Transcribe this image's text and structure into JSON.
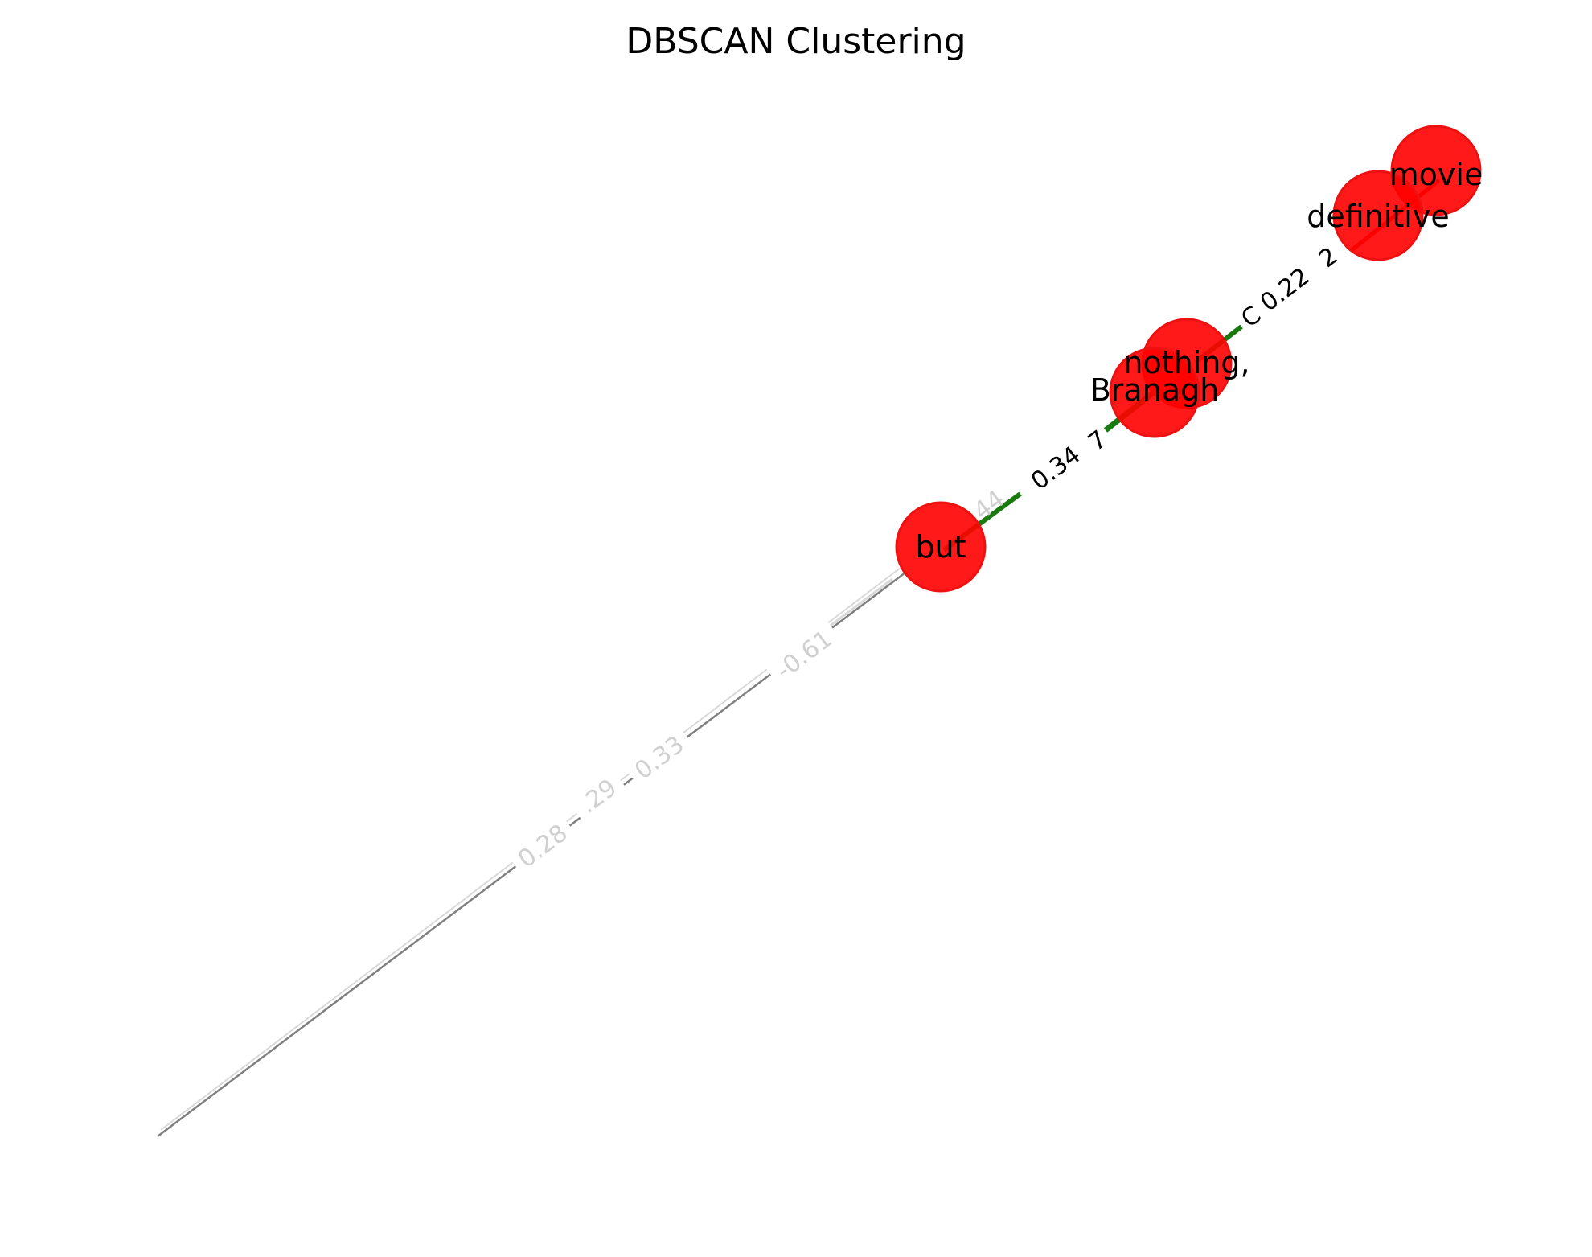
{
  "title": "DBSCAN Clustering",
  "colors": {
    "node_fill": "#ff0000",
    "node_stroke": "#ee1111",
    "edge_green": "#1a7a10",
    "edge_red": "#cc1100",
    "edge_gray": "#7f7f7f",
    "edge_light": "#d9d9d9",
    "label_dark": "#000000",
    "label_light": "#d0d0d0"
  },
  "nodes": [
    {
      "id": "but",
      "label": "but"
    },
    {
      "id": "nothing",
      "label": "nothing,"
    },
    {
      "id": "branagh",
      "label": "Branagh"
    },
    {
      "id": "definitive",
      "label": "definitive"
    },
    {
      "id": "movie",
      "label": "movie"
    }
  ],
  "edge_labels": [
    {
      "id": "w-0-34",
      "text": "0.34",
      "tone": "dark"
    },
    {
      "id": "w-0-22",
      "text": "0.22",
      "tone": "dark"
    },
    {
      "id": "w-neg-0-61",
      "text": "-0.61",
      "tone": "light"
    },
    {
      "id": "w-0-33",
      "text": "0.33",
      "tone": "light"
    },
    {
      "id": "w-0-29",
      "text": ".29",
      "tone": "light"
    },
    {
      "id": "w-0-28",
      "text": "0.28",
      "tone": "light"
    },
    {
      "id": "w-partial-44",
      "text": "44",
      "tone": "light"
    },
    {
      "id": "w-partial-7",
      "text": "7",
      "tone": "dark"
    },
    {
      "id": "w-partial-c",
      "text": "C",
      "tone": "dark"
    },
    {
      "id": "w-partial-2",
      "text": "2",
      "tone": "dark"
    }
  ]
}
